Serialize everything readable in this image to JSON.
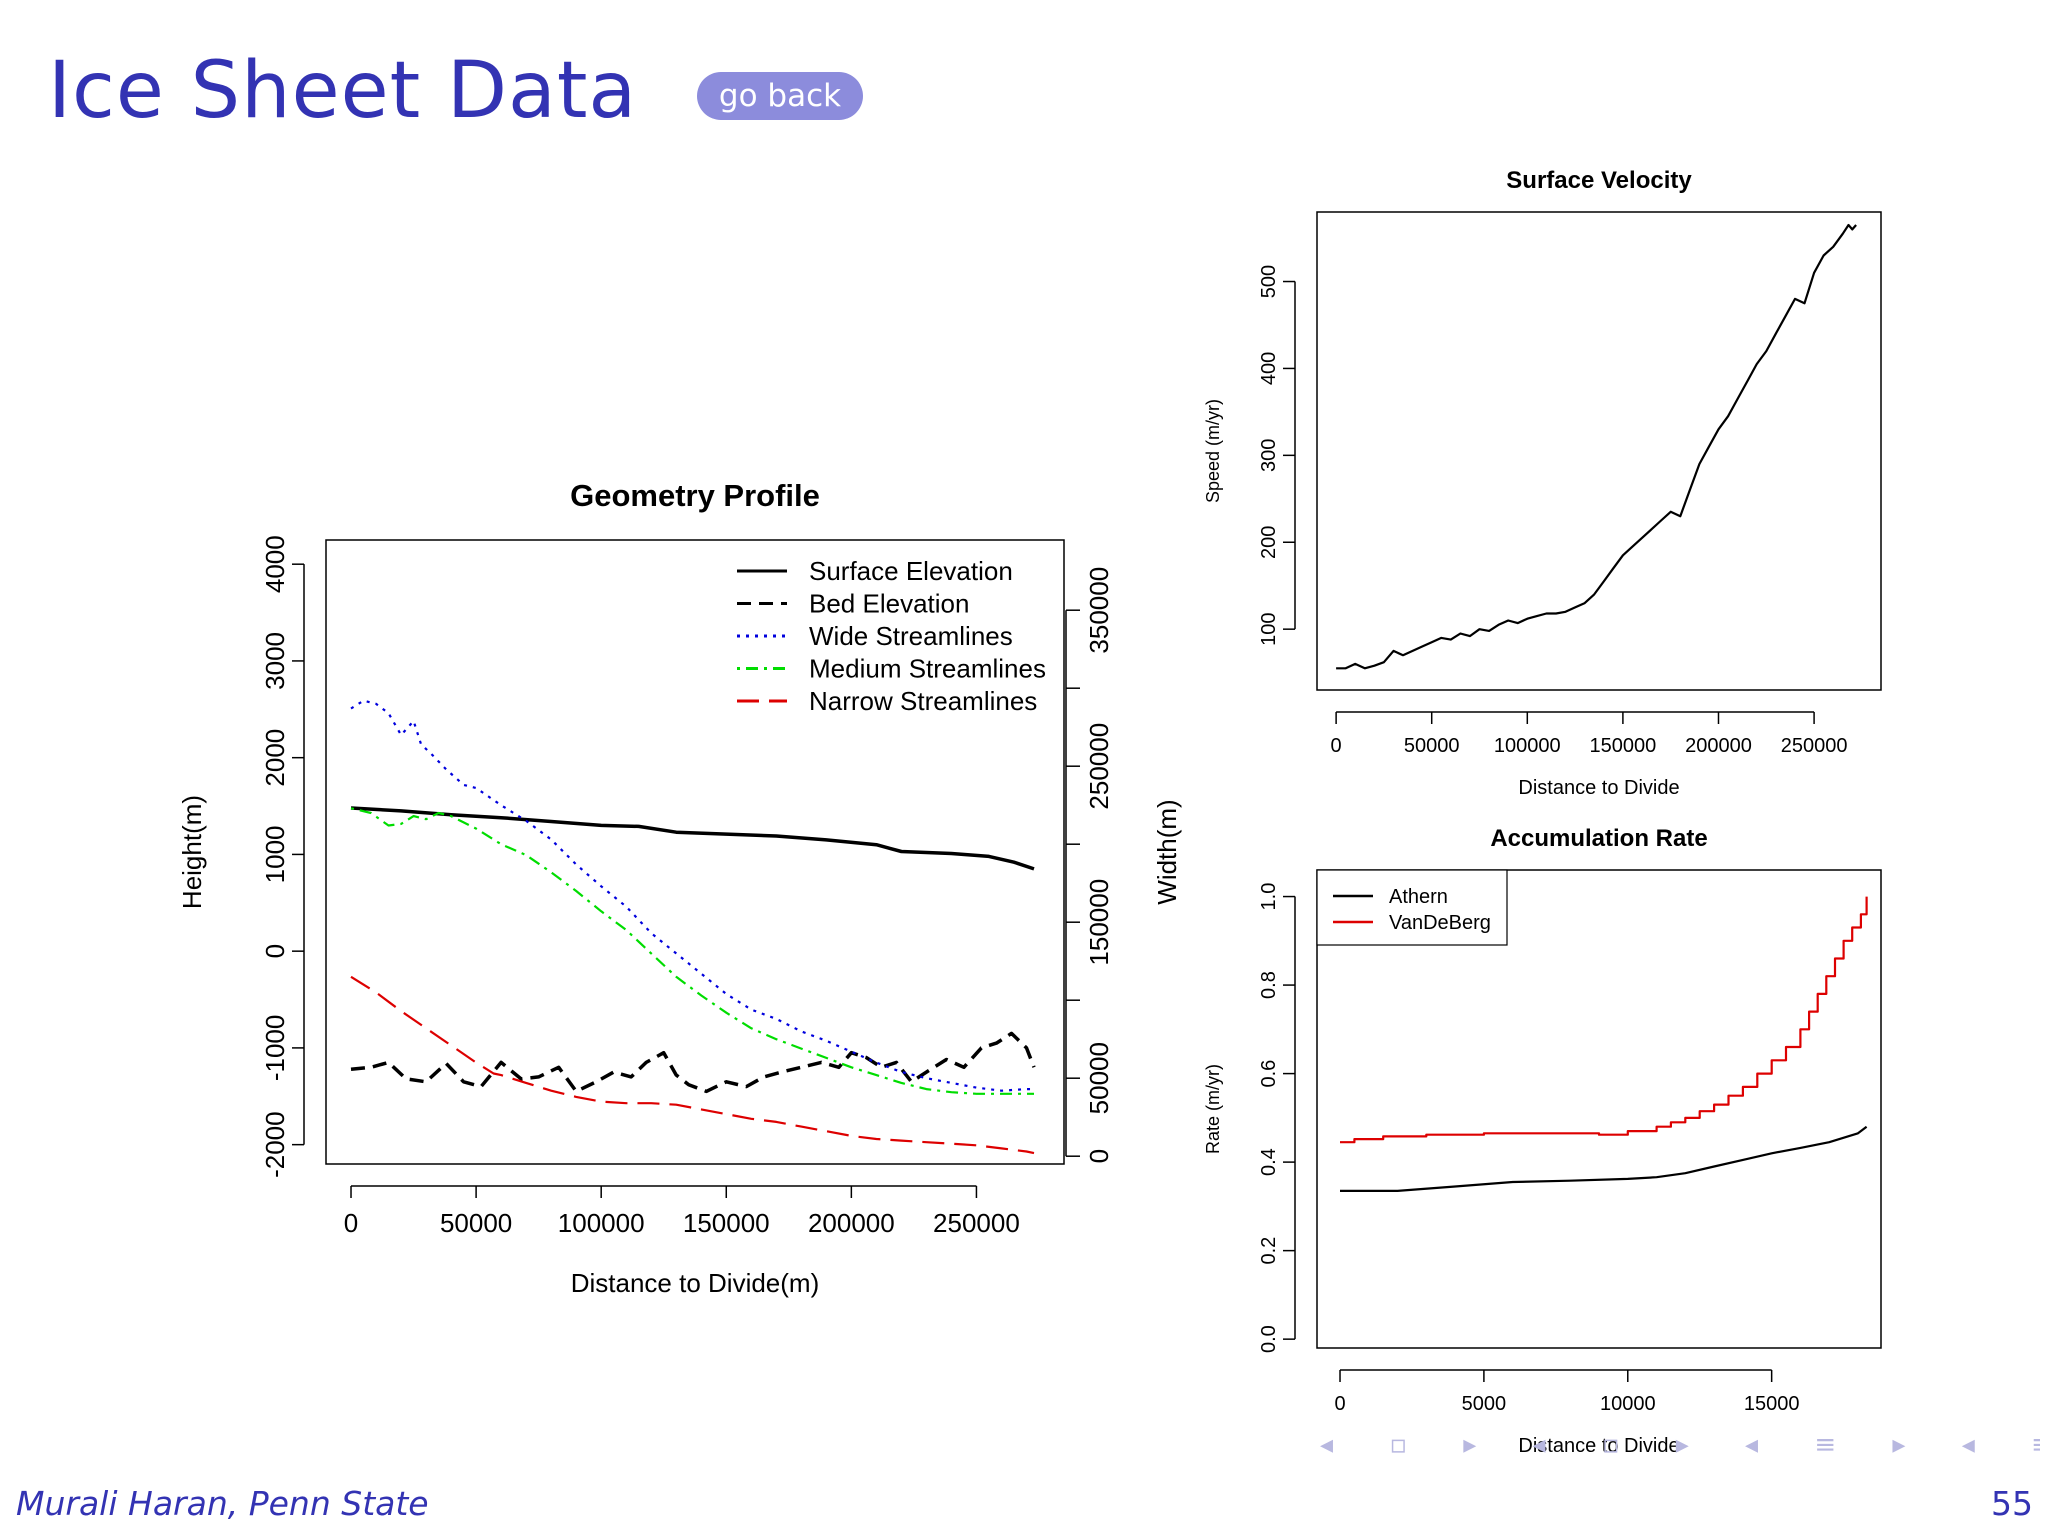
{
  "slide": {
    "title": "Ice Sheet Data",
    "go_back_label": "go back",
    "footer_author": "Murali Haran, Penn State",
    "page_number": "55"
  },
  "chart_data": [
    {
      "type": "line",
      "title": "Geometry Profile",
      "xlabel": "Distance to Divide(m)",
      "ylabel": "Height(m)",
      "y2label": "Width(m)",
      "xlim": [
        -10000,
        285000
      ],
      "ylim": [
        -2200,
        4250
      ],
      "y2lim": [
        -5000,
        395000
      ],
      "xticks": [
        0,
        50000,
        100000,
        150000,
        200000,
        250000
      ],
      "yticks": [
        -2000,
        -1000,
        0,
        1000,
        2000,
        3000,
        4000
      ],
      "y2ticks": [
        0,
        50000,
        100000,
        150000,
        200000,
        250000,
        300000,
        350000
      ],
      "y2ticks_labeled": [
        0,
        50000,
        150000,
        250000,
        350000
      ],
      "grid": false,
      "legend_position": "top-right",
      "series": [
        {
          "name": "Surface Elevation",
          "color": "#000000",
          "dash": "solid",
          "axis": "left",
          "x": [
            0,
            20000,
            40000,
            60000,
            80000,
            100000,
            115000,
            130000,
            150000,
            170000,
            190000,
            210000,
            220000,
            240000,
            255000,
            265000,
            273000
          ],
          "y": [
            1480,
            1450,
            1410,
            1380,
            1340,
            1300,
            1290,
            1230,
            1210,
            1190,
            1150,
            1100,
            1030,
            1010,
            980,
            920,
            850
          ]
        },
        {
          "name": "Bed Elevation",
          "color": "#000000",
          "dash": "dashed",
          "axis": "left",
          "x": [
            0,
            8000,
            15000,
            22000,
            30000,
            38000,
            45000,
            52000,
            60000,
            68000,
            75000,
            83000,
            90000,
            98000,
            105000,
            112000,
            118000,
            125000,
            130000,
            135000,
            142000,
            150000,
            158000,
            165000,
            172000,
            180000,
            188000,
            195000,
            200000,
            206000,
            212000,
            218000,
            224000,
            230000,
            238000,
            245000,
            252000,
            258000,
            264000,
            270000,
            273000
          ],
          "y": [
            -1220,
            -1200,
            -1150,
            -1320,
            -1350,
            -1160,
            -1350,
            -1400,
            -1150,
            -1320,
            -1300,
            -1200,
            -1450,
            -1350,
            -1250,
            -1300,
            -1150,
            -1050,
            -1280,
            -1380,
            -1450,
            -1350,
            -1400,
            -1300,
            -1250,
            -1200,
            -1150,
            -1200,
            -1050,
            -1100,
            -1200,
            -1150,
            -1350,
            -1250,
            -1120,
            -1200,
            -1000,
            -950,
            -850,
            -1000,
            -1200
          ]
        },
        {
          "name": "Wide Streamlines",
          "color": "#0000dd",
          "dash": "dotted",
          "axis": "right",
          "x": [
            0,
            5000,
            10000,
            15000,
            20000,
            25000,
            28000,
            32000,
            38000,
            45000,
            50000,
            60000,
            70000,
            80000,
            90000,
            100000,
            110000,
            120000,
            130000,
            140000,
            150000,
            160000,
            170000,
            180000,
            190000,
            200000,
            210000,
            220000,
            230000,
            240000,
            250000,
            260000,
            270000,
            273000
          ],
          "y": [
            287000,
            292000,
            290000,
            284000,
            270000,
            279000,
            264000,
            258000,
            248000,
            238000,
            236000,
            225000,
            215000,
            203000,
            187000,
            173000,
            160000,
            143000,
            130000,
            117000,
            104000,
            94000,
            88000,
            80000,
            74000,
            67000,
            60000,
            54000,
            50000,
            47000,
            44000,
            42000,
            43000,
            43000
          ]
        },
        {
          "name": "Medium Streamlines",
          "color": "#00dd00",
          "dash": "dotdash",
          "axis": "right",
          "x": [
            0,
            8000,
            15000,
            20000,
            25000,
            30000,
            35000,
            40000,
            45000,
            50000,
            60000,
            70000,
            80000,
            90000,
            100000,
            110000,
            120000,
            130000,
            140000,
            150000,
            160000,
            170000,
            180000,
            190000,
            200000,
            210000,
            220000,
            230000,
            240000,
            250000,
            260000,
            270000,
            273000
          ],
          "y": [
            223000,
            220000,
            212000,
            213000,
            218000,
            216000,
            220000,
            218000,
            214000,
            210000,
            200000,
            193000,
            182000,
            170000,
            157000,
            145000,
            130000,
            115000,
            103000,
            92000,
            82000,
            75000,
            69000,
            63000,
            57000,
            52000,
            47000,
            43000,
            41000,
            40000,
            40000,
            40000,
            40000
          ]
        },
        {
          "name": "Narrow Streamlines",
          "color": "#dd0000",
          "dash": "longdash",
          "axis": "right",
          "x": [
            0,
            10000,
            20000,
            30000,
            40000,
            50000,
            57000,
            60000,
            70000,
            80000,
            90000,
            100000,
            110000,
            120000,
            130000,
            140000,
            150000,
            160000,
            170000,
            180000,
            190000,
            200000,
            210000,
            220000,
            230000,
            240000,
            250000,
            260000,
            270000,
            273000
          ],
          "y": [
            115000,
            105000,
            93000,
            82000,
            71000,
            60000,
            53000,
            52000,
            47000,
            42000,
            38000,
            35000,
            34000,
            34000,
            33000,
            30000,
            27000,
            24000,
            22000,
            19000,
            16000,
            13000,
            11000,
            10000,
            9000,
            8000,
            7000,
            5000,
            3000,
            2000
          ]
        }
      ]
    },
    {
      "type": "line",
      "title": "Surface Velocity",
      "xlabel": "Distance to Divide",
      "ylabel": "Speed (m/yr)",
      "xlim": [
        -10000,
        285000
      ],
      "ylim": [
        30,
        580
      ],
      "xticks": [
        0,
        50000,
        100000,
        150000,
        200000,
        250000
      ],
      "yticks": [
        100,
        200,
        300,
        400,
        500
      ],
      "grid": false,
      "series": [
        {
          "name": "",
          "color": "#000000",
          "x": [
            0,
            5000,
            10000,
            15000,
            20000,
            25000,
            30000,
            35000,
            40000,
            45000,
            50000,
            55000,
            60000,
            65000,
            70000,
            75000,
            80000,
            85000,
            90000,
            95000,
            100000,
            105000,
            110000,
            115000,
            120000,
            125000,
            130000,
            135000,
            140000,
            145000,
            150000,
            155000,
            160000,
            165000,
            170000,
            175000,
            180000,
            185000,
            190000,
            195000,
            200000,
            205000,
            210000,
            215000,
            220000,
            225000,
            230000,
            235000,
            240000,
            245000,
            250000,
            255000,
            260000,
            265000,
            268000,
            270000,
            272000
          ],
          "y": [
            55,
            55,
            60,
            55,
            58,
            62,
            75,
            70,
            75,
            80,
            85,
            90,
            88,
            95,
            92,
            100,
            98,
            105,
            110,
            107,
            112,
            115,
            118,
            118,
            120,
            125,
            130,
            140,
            155,
            170,
            185,
            195,
            205,
            215,
            225,
            235,
            230,
            260,
            290,
            310,
            330,
            345,
            365,
            385,
            405,
            420,
            440,
            460,
            480,
            475,
            510,
            530,
            540,
            555,
            565,
            560,
            565
          ]
        }
      ]
    },
    {
      "type": "line",
      "title": "Accumulation Rate",
      "xlabel": "Distance to Divide",
      "ylabel": "Rate (m/yr)",
      "xlim": [
        -800,
        18800
      ],
      "ylim": [
        -0.02,
        1.06
      ],
      "xticks": [
        0,
        5000,
        10000,
        15000
      ],
      "yticks": [
        0.0,
        0.2,
        0.4,
        0.6,
        0.8,
        1.0
      ],
      "grid": false,
      "legend_position": "top-left",
      "series": [
        {
          "name": "Athern",
          "color": "#000000",
          "step": false,
          "x": [
            0,
            2000,
            4000,
            6000,
            8000,
            10000,
            11000,
            12000,
            13000,
            14000,
            15000,
            16000,
            17000,
            18000,
            18300
          ],
          "y": [
            0.335,
            0.335,
            0.345,
            0.355,
            0.358,
            0.362,
            0.366,
            0.375,
            0.39,
            0.405,
            0.42,
            0.432,
            0.445,
            0.465,
            0.48
          ]
        },
        {
          "name": "VanDeBerg",
          "color": "#dd0000",
          "step": true,
          "x": [
            0,
            500,
            1500,
            3000,
            5000,
            7000,
            9000,
            10000,
            11000,
            11500,
            12000,
            12500,
            13000,
            13500,
            14000,
            14500,
            15000,
            15500,
            16000,
            16300,
            16600,
            16900,
            17200,
            17500,
            17800,
            18100,
            18300
          ],
          "y": [
            0.445,
            0.452,
            0.458,
            0.462,
            0.465,
            0.465,
            0.462,
            0.47,
            0.48,
            0.49,
            0.5,
            0.515,
            0.53,
            0.55,
            0.57,
            0.6,
            0.63,
            0.66,
            0.7,
            0.74,
            0.78,
            0.82,
            0.86,
            0.9,
            0.93,
            0.96,
            1.0
          ]
        }
      ]
    }
  ]
}
